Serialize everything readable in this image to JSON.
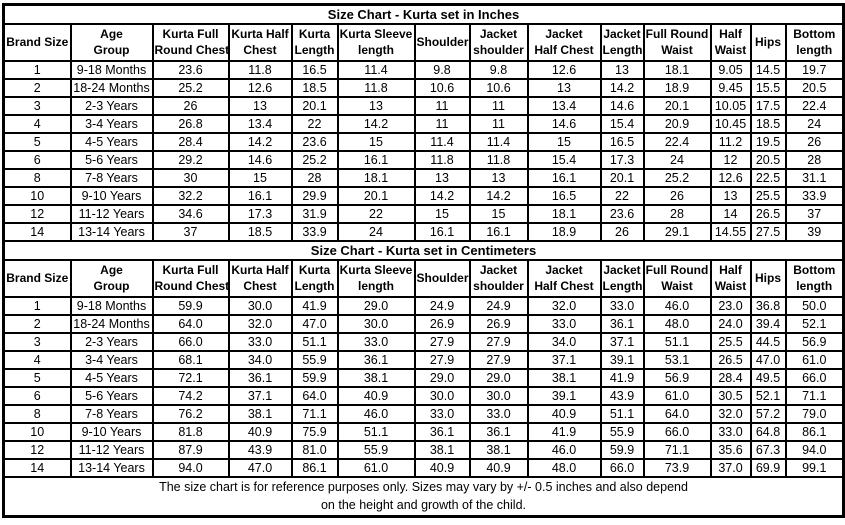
{
  "chart_data": [
    {
      "type": "table",
      "title": "Size Chart - Kurta set in Inches",
      "columns": [
        "Brand Size",
        "Age Group",
        "Kurta Full Round Chest",
        "Kurta Half Chest",
        "Kurta Length",
        "Kurta Sleeve length",
        "Shoulder",
        "Jacket shoulder",
        "Jacket Half Chest",
        "Jacket Length",
        "Full Round Waist",
        "Half Waist",
        "Hips",
        "Bottom length"
      ],
      "rows": [
        [
          "1",
          "9-18 Months",
          "23.6",
          "11.8",
          "16.5",
          "11.4",
          "9.8",
          "9.8",
          "12.6",
          "13",
          "18.1",
          "9.05",
          "14.5",
          "19.7"
        ],
        [
          "2",
          "18-24 Months",
          "25.2",
          "12.6",
          "18.5",
          "11.8",
          "10.6",
          "10.6",
          "13",
          "14.2",
          "18.9",
          "9.45",
          "15.5",
          "20.5"
        ],
        [
          "3",
          "2-3 Years",
          "26",
          "13",
          "20.1",
          "13",
          "11",
          "11",
          "13.4",
          "14.6",
          "20.1",
          "10.05",
          "17.5",
          "22.4"
        ],
        [
          "4",
          "3-4 Years",
          "26.8",
          "13.4",
          "22",
          "14.2",
          "11",
          "11",
          "14.6",
          "15.4",
          "20.9",
          "10.45",
          "18.5",
          "24"
        ],
        [
          "5",
          "4-5 Years",
          "28.4",
          "14.2",
          "23.6",
          "15",
          "11.4",
          "11.4",
          "15",
          "16.5",
          "22.4",
          "11.2",
          "19.5",
          "26"
        ],
        [
          "6",
          "5-6 Years",
          "29.2",
          "14.6",
          "25.2",
          "16.1",
          "11.8",
          "11.8",
          "15.4",
          "17.3",
          "24",
          "12",
          "20.5",
          "28"
        ],
        [
          "8",
          "7-8 Years",
          "30",
          "15",
          "28",
          "18.1",
          "13",
          "13",
          "16.1",
          "20.1",
          "25.2",
          "12.6",
          "22.5",
          "31.1"
        ],
        [
          "10",
          "9-10 Years",
          "32.2",
          "16.1",
          "29.9",
          "20.1",
          "14.2",
          "14.2",
          "16.5",
          "22",
          "26",
          "13",
          "25.5",
          "33.9"
        ],
        [
          "12",
          "11-12 Years",
          "34.6",
          "17.3",
          "31.9",
          "22",
          "15",
          "15",
          "18.1",
          "23.6",
          "28",
          "14",
          "26.5",
          "37"
        ],
        [
          "14",
          "13-14 Years",
          "37",
          "18.5",
          "33.9",
          "24",
          "16.1",
          "16.1",
          "18.9",
          "26",
          "29.1",
          "14.55",
          "27.5",
          "39"
        ]
      ]
    },
    {
      "type": "table",
      "title": "Size Chart - Kurta set in Centimeters",
      "columns": [
        "Brand Size",
        "Age Group",
        "Kurta Full Round Chest",
        "Kurta Half Chest",
        "Kurta Length",
        "Kurta Sleeve length",
        "Shoulder",
        "Jacket shoulder",
        "Jacket Half Chest",
        "Jacket Length",
        "Full Round Waist",
        "Half Waist",
        "Hips",
        "Bottom length"
      ],
      "rows": [
        [
          "1",
          "9-18 Months",
          "59.9",
          "30.0",
          "41.9",
          "29.0",
          "24.9",
          "24.9",
          "32.0",
          "33.0",
          "46.0",
          "23.0",
          "36.8",
          "50.0"
        ],
        [
          "2",
          "18-24 Months",
          "64.0",
          "32.0",
          "47.0",
          "30.0",
          "26.9",
          "26.9",
          "33.0",
          "36.1",
          "48.0",
          "24.0",
          "39.4",
          "52.1"
        ],
        [
          "3",
          "2-3 Years",
          "66.0",
          "33.0",
          "51.1",
          "33.0",
          "27.9",
          "27.9",
          "34.0",
          "37.1",
          "51.1",
          "25.5",
          "44.5",
          "56.9"
        ],
        [
          "4",
          "3-4 Years",
          "68.1",
          "34.0",
          "55.9",
          "36.1",
          "27.9",
          "27.9",
          "37.1",
          "39.1",
          "53.1",
          "26.5",
          "47.0",
          "61.0"
        ],
        [
          "5",
          "4-5 Years",
          "72.1",
          "36.1",
          "59.9",
          "38.1",
          "29.0",
          "29.0",
          "38.1",
          "41.9",
          "56.9",
          "28.4",
          "49.5",
          "66.0"
        ],
        [
          "6",
          "5-6 Years",
          "74.2",
          "37.1",
          "64.0",
          "40.9",
          "30.0",
          "30.0",
          "39.1",
          "43.9",
          "61.0",
          "30.5",
          "52.1",
          "71.1"
        ],
        [
          "8",
          "7-8 Years",
          "76.2",
          "38.1",
          "71.1",
          "46.0",
          "33.0",
          "33.0",
          "40.9",
          "51.1",
          "64.0",
          "32.0",
          "57.2",
          "79.0"
        ],
        [
          "10",
          "9-10 Years",
          "81.8",
          "40.9",
          "75.9",
          "51.1",
          "36.1",
          "36.1",
          "41.9",
          "55.9",
          "66.0",
          "33.0",
          "64.8",
          "86.1"
        ],
        [
          "12",
          "11-12 Years",
          "87.9",
          "43.9",
          "81.0",
          "55.9",
          "38.1",
          "38.1",
          "46.0",
          "59.9",
          "71.1",
          "35.6",
          "67.3",
          "94.0"
        ],
        [
          "14",
          "13-14 Years",
          "94.0",
          "47.0",
          "86.1",
          "61.0",
          "40.9",
          "40.9",
          "48.0",
          "66.0",
          "73.9",
          "37.0",
          "69.9",
          "99.1"
        ]
      ]
    }
  ],
  "table": {
    "header_lines": [
      [
        "Brand Size"
      ],
      [
        "Age",
        "Group"
      ],
      [
        "Kurta Full",
        "Round Chest"
      ],
      [
        "Kurta Half",
        "Chest"
      ],
      [
        "Kurta",
        "Length"
      ],
      [
        "Kurta Sleeve",
        "length"
      ],
      [
        "Shoulder"
      ],
      [
        "Jacket",
        "shoulder"
      ],
      [
        "Jacket",
        "Half Chest"
      ],
      [
        "Jacket",
        "Length"
      ],
      [
        "Full Round",
        "Waist"
      ],
      [
        "Half",
        "Waist"
      ],
      [
        "Hips"
      ],
      [
        "Bottom",
        "length"
      ]
    ],
    "footer": [
      "The size chart is for reference purposes only. Sizes may vary by +/- 0.5 inches and also depend",
      "on the height and growth of the child."
    ]
  },
  "colors": {
    "border": "#000000",
    "text": "#000000",
    "background": "#ffffff"
  }
}
